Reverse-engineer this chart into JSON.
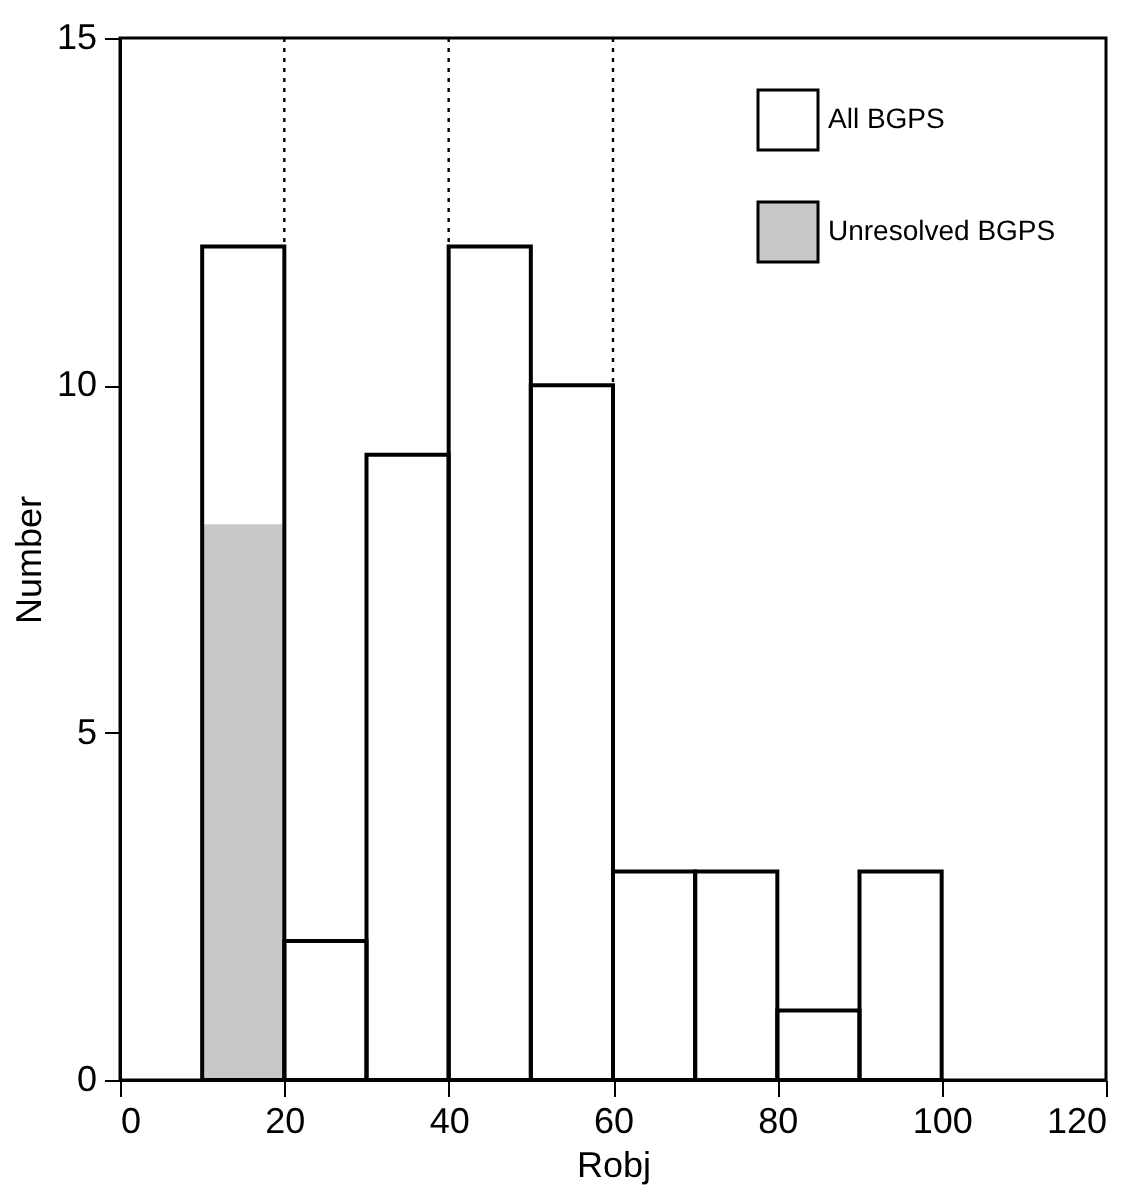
{
  "chart_data": {
    "type": "histogram",
    "xlabel": "Robj",
    "ylabel": "Number",
    "bins": [
      10,
      20,
      30,
      40,
      50,
      60,
      70,
      80,
      90,
      100
    ],
    "series": [
      {
        "name": "All BGPS",
        "color": "#000000",
        "values": [
          12,
          2,
          9,
          12,
          10,
          3,
          3,
          1,
          3
        ]
      },
      {
        "name": "Unresolved BGPS",
        "type": "histogram",
        "color": "#c8c8c8",
        "values": [
          8,
          0,
          0,
          0,
          0,
          0,
          0,
          0,
          0
        ]
      }
    ],
    "xlim": [
      0,
      120
    ],
    "xticks": [
      0,
      20,
      40,
      60,
      80,
      100,
      120
    ],
    "ylim": [
      0,
      15
    ],
    "yticks": [
      0,
      5,
      10,
      15
    ],
    "ref_lines": [
      {
        "axis": "x",
        "value": 20,
        "line_style": "dotted"
      },
      {
        "axis": "x",
        "value": 40,
        "line_style": "dotted"
      },
      {
        "axis": "x",
        "value": 60,
        "line_style": "dotted"
      }
    ],
    "grid": false,
    "legend": "top right"
  }
}
